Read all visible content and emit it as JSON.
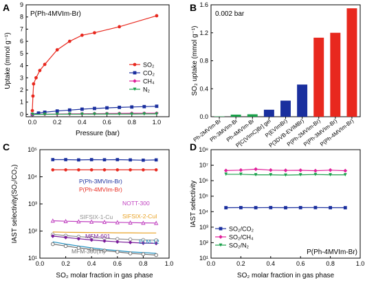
{
  "chart_data": [
    {
      "panel": "A",
      "type": "line",
      "annotation": "P(Ph-4MVIm-Br)",
      "xlabel": "Pressure (bar)",
      "ylabel": "Uptake (mmol g⁻¹)",
      "xlim": [
        -0.05,
        1.1
      ],
      "ylim": [
        -0.2,
        9
      ],
      "xticks": [
        "0.0",
        "0.2",
        "0.4",
        "0.6",
        "0.8",
        "1.0"
      ],
      "yticks": [
        "0",
        "1",
        "2",
        "3",
        "4",
        "5",
        "6",
        "7",
        "8",
        "9"
      ],
      "legend": "center-right",
      "series": [
        {
          "name": "SO₂",
          "color": "#e8281e",
          "marker": "circle",
          "x": [
            0.0,
            0.005,
            0.01,
            0.03,
            0.06,
            0.1,
            0.2,
            0.3,
            0.4,
            0.5,
            0.7,
            1.0
          ],
          "y": [
            0.3,
            1.5,
            2.5,
            3.0,
            3.6,
            4.1,
            5.3,
            6.0,
            6.5,
            6.7,
            7.2,
            8.1
          ]
        },
        {
          "name": "CO₂",
          "color": "#1a2f9e",
          "marker": "square",
          "x": [
            0.0,
            0.05,
            0.1,
            0.2,
            0.3,
            0.4,
            0.5,
            0.6,
            0.7,
            0.8,
            0.9,
            1.0
          ],
          "y": [
            0.0,
            0.1,
            0.17,
            0.27,
            0.35,
            0.42,
            0.48,
            0.53,
            0.57,
            0.6,
            0.63,
            0.66
          ]
        },
        {
          "name": "CH₄",
          "color": "#e0209a",
          "marker": "diamond",
          "x": [
            0.0,
            0.1,
            0.2,
            0.3,
            0.4,
            0.5,
            0.6,
            0.7,
            0.8,
            0.9,
            1.0
          ],
          "y": [
            0.0,
            0.01,
            0.02,
            0.03,
            0.04,
            0.05,
            0.06,
            0.07,
            0.08,
            0.08,
            0.09
          ]
        },
        {
          "name": "N₂",
          "color": "#1aa04a",
          "marker": "triangle-down",
          "x": [
            0.0,
            0.1,
            0.2,
            0.3,
            0.4,
            0.5,
            0.6,
            0.7,
            0.8,
            0.9,
            1.0
          ],
          "y": [
            0.0,
            0.0,
            0.01,
            0.01,
            0.01,
            0.02,
            0.02,
            0.02,
            0.02,
            0.03,
            0.03
          ]
        }
      ]
    },
    {
      "panel": "B",
      "type": "bar",
      "annotation": "0.002 bar",
      "ylabel": "SO₂ uptake (mmol g⁻¹)",
      "ylim": [
        0,
        1.6
      ],
      "yticks": [
        "0.0",
        "0.4",
        "0.8",
        "1.2",
        "1.6"
      ],
      "categories": [
        "Ph-2MVIm-Br",
        "Ph-3MVIm-Br",
        "Ph-4MVIm-Br",
        "P[C(VImC)Br] gel",
        "P(EVImBr)",
        "P(3DVB-EVIMBr)",
        "P(Ph-2MVIm-Br)",
        "P(Ph-3MVIm-Br)",
        "P(Ph-4MVIm-Br)"
      ],
      "values": [
        0.005,
        0.03,
        0.035,
        0.1,
        0.23,
        0.46,
        1.13,
        1.2,
        1.55
      ],
      "colors": [
        "#1aa04a",
        "#1aa04a",
        "#1aa04a",
        "#1a2f9e",
        "#1a2f9e",
        "#1a2f9e",
        "#e8281e",
        "#e8281e",
        "#e8281e"
      ]
    },
    {
      "panel": "C",
      "type": "line",
      "xlabel": "SO₂ molar fraction in gas phase",
      "ylabel": "IAST selectivity(SO₂/CO₂)",
      "yscale": "log",
      "xlim": [
        0,
        1
      ],
      "ylim_exp": [
        1,
        5
      ],
      "xticks": [
        "0.0",
        "0.2",
        "0.4",
        "0.6",
        "0.8",
        "1.0"
      ],
      "yticks": [
        "10¹",
        "10²",
        "10³",
        "10⁴",
        "10⁵"
      ],
      "x": [
        0.1,
        0.2,
        0.3,
        0.4,
        0.5,
        0.6,
        0.7,
        0.8,
        0.9
      ],
      "series": [
        {
          "name": "P(Ph-3MVIm-Br)",
          "color": "#1a2f9e",
          "marker": "square",
          "y": [
            43000,
            43000,
            42000,
            43000,
            42500,
            43000,
            42000,
            41000,
            42000
          ]
        },
        {
          "name": "P(Ph-4MVIm-Br)",
          "color": "#e8281e",
          "marker": "circle",
          "y": [
            18000,
            18000,
            18000,
            18000,
            18000,
            18000,
            18000,
            18000,
            18000
          ]
        },
        {
          "name": "NOTT-300",
          "color": "#c040c0",
          "marker": "triangle",
          "y": [
            240,
            230,
            225,
            220,
            215,
            210,
            205,
            200,
            198
          ]
        },
        {
          "name": "SIFSIX-2-CuI",
          "color": "#e8a020",
          "marker": "none",
          "y": [
            92,
            90,
            89,
            88,
            87,
            86,
            86,
            85,
            85
          ]
        },
        {
          "name": "SIFSIX-1-Cu",
          "color": "#909090",
          "marker": "circle-open",
          "y": [
            75,
            68,
            62,
            58,
            54,
            51,
            49,
            47,
            46
          ]
        },
        {
          "name": "MFM-601",
          "color": "#7a1a9a",
          "marker": "diamond",
          "y": [
            65,
            58,
            52,
            47,
            43,
            40,
            38,
            36,
            35
          ]
        },
        {
          "name": "ELM-12",
          "color": "#2090c0",
          "marker": "none",
          "y": [
            40,
            33,
            28,
            24,
            21,
            19,
            17,
            16,
            15
          ]
        },
        {
          "name": "MFM-300(In)",
          "color": "#707070",
          "marker": "circle-open",
          "y": [
            33,
            28,
            24,
            21,
            19,
            17,
            15,
            14,
            13
          ]
        }
      ]
    },
    {
      "panel": "D",
      "type": "line",
      "annotation": "P(Ph-4MVIm-Br)",
      "xlabel": "SO₂ molar fraction in gas phase",
      "ylabel": "IAST selectivity",
      "yscale": "log",
      "xlim": [
        0,
        1
      ],
      "ylim_exp": [
        1,
        8
      ],
      "xticks": [
        "0.0",
        "0.2",
        "0.4",
        "0.6",
        "0.8",
        "1.0"
      ],
      "yticks": [
        "10¹",
        "10²",
        "10³",
        "10⁴",
        "10⁵",
        "10⁶",
        "10⁷",
        "10⁸"
      ],
      "legend": "bottom-left",
      "x": [
        0.1,
        0.2,
        0.3,
        0.4,
        0.5,
        0.6,
        0.7,
        0.8,
        0.9
      ],
      "series": [
        {
          "name": "SO₂/CO₂",
          "color": "#1a2f9e",
          "marker": "square",
          "y": [
            18000,
            18200,
            18100,
            18300,
            18000,
            18200,
            18400,
            18100,
            18000
          ]
        },
        {
          "name": "SO₂/CH₄",
          "color": "#e0209a",
          "marker": "diamond",
          "y": [
            4500000,
            4800000,
            5500000,
            4800000,
            4600000,
            4700000,
            4400000,
            4800000,
            4400000
          ]
        },
        {
          "name": "SO₂/N₂",
          "color": "#1aa04a",
          "marker": "triangle-down",
          "y": [
            2600000,
            2600000,
            2400000,
            2400000,
            2300000,
            2400000,
            2500000,
            2400000,
            2400000
          ]
        }
      ]
    }
  ],
  "labels": {
    "a": "A",
    "b": "B",
    "c": "C",
    "d": "D"
  }
}
